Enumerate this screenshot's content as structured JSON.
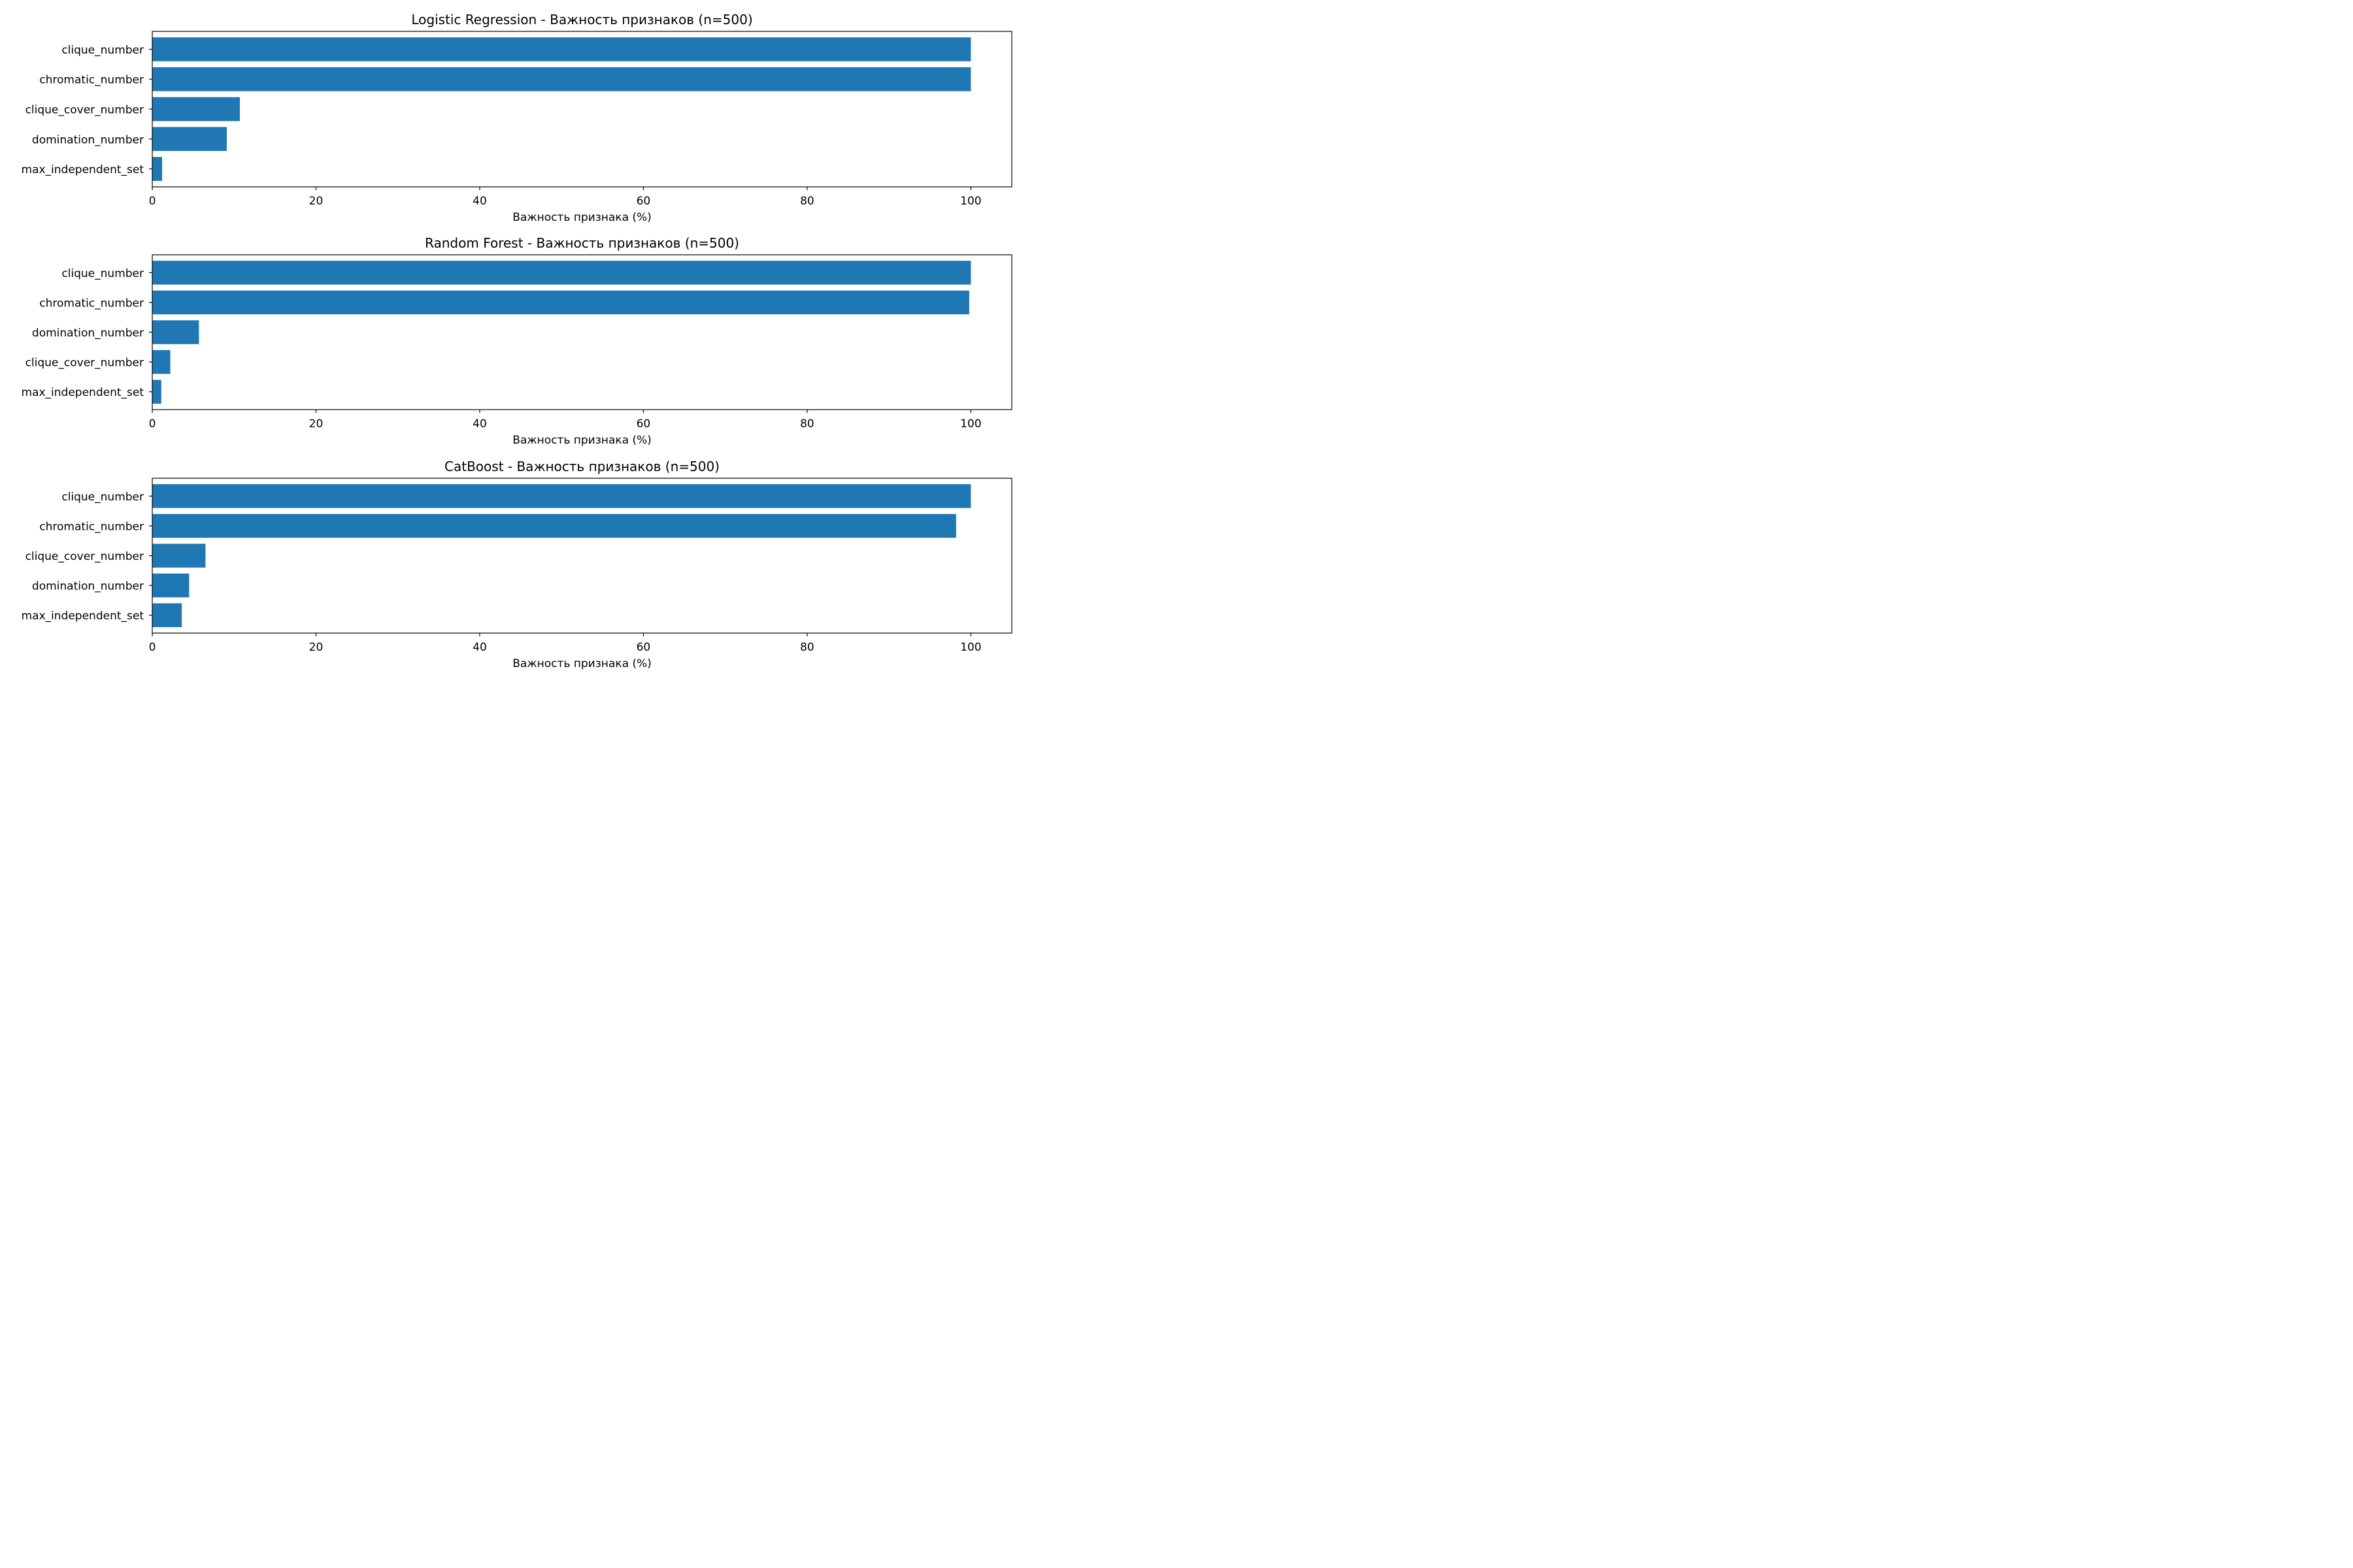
{
  "colors": {
    "bar": "#1f77b4",
    "axis": "#000000",
    "background": "#ffffff"
  },
  "chart_data": [
    {
      "type": "bar",
      "orientation": "horizontal",
      "title": "Logistic Regression - Важность признаков (n=500)",
      "xlabel": "Важность признака (%)",
      "ylabel": "",
      "xlim": [
        0,
        105
      ],
      "xticks": [
        0,
        20,
        40,
        60,
        80,
        100
      ],
      "grid": false,
      "categories": [
        "clique_number",
        "chromatic_number",
        "clique_cover_number",
        "domination_number",
        "max_independent_set"
      ],
      "values": [
        100,
        100,
        10.7,
        9.1,
        1.2
      ]
    },
    {
      "type": "bar",
      "orientation": "horizontal",
      "title": "Random Forest - Важность признаков (n=500)",
      "xlabel": "Важность признака (%)",
      "ylabel": "",
      "xlim": [
        0,
        105
      ],
      "xticks": [
        0,
        20,
        40,
        60,
        80,
        100
      ],
      "grid": false,
      "categories": [
        "clique_number",
        "chromatic_number",
        "domination_number",
        "clique_cover_number",
        "max_independent_set"
      ],
      "values": [
        100,
        99.8,
        5.7,
        2.2,
        1.1
      ]
    },
    {
      "type": "bar",
      "orientation": "horizontal",
      "title": "CatBoost - Важность признаков (n=500)",
      "xlabel": "Важность признака (%)",
      "ylabel": "",
      "xlim": [
        0,
        105
      ],
      "xticks": [
        0,
        20,
        40,
        60,
        80,
        100
      ],
      "grid": false,
      "categories": [
        "clique_number",
        "chromatic_number",
        "clique_cover_number",
        "domination_number",
        "max_independent_set"
      ],
      "values": [
        100,
        98.2,
        6.5,
        4.5,
        3.6
      ]
    }
  ]
}
